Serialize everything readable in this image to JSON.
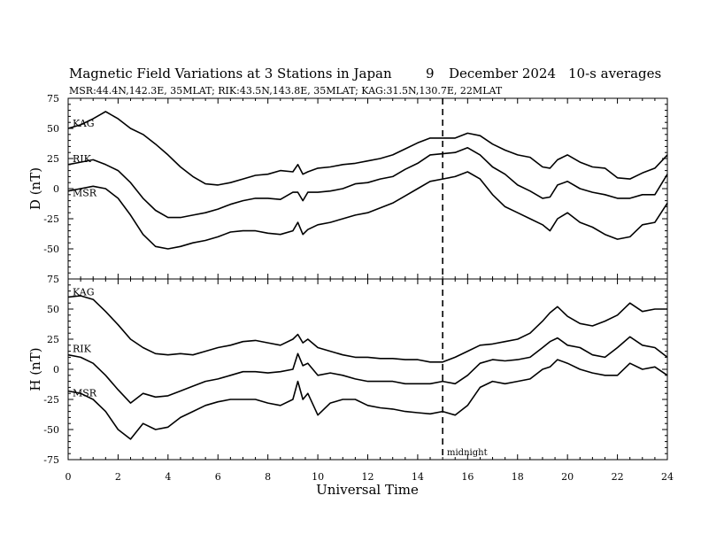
{
  "header": {
    "title": "Magnetic Field Variations at 3 Stations in Japan",
    "day": "9",
    "month_year": "December 2024",
    "averaging": "10-s averages",
    "stations_line": "MSR:44.4N,142.3E, 35MLAT;  RIK:43.5N,143.8E, 35MLAT;  KAG:31.5N,130.7E, 22MLAT"
  },
  "annotations": {
    "midnight": "midnight"
  },
  "chart_data": [
    {
      "type": "line",
      "panel": "D",
      "ylabel": "D (nT)",
      "xlabel": "Universal Time",
      "xlim": [
        0,
        24
      ],
      "ylim": [
        -75,
        75
      ],
      "xticks": [
        "0",
        "2",
        "4",
        "6",
        "8",
        "10",
        "12",
        "14",
        "16",
        "18",
        "20",
        "22",
        "24"
      ],
      "yticks": [
        "-75",
        "-50",
        "-25",
        "0",
        "25",
        "50",
        "75"
      ],
      "vline": {
        "x": 15,
        "style": "dashed",
        "label": "midnight"
      },
      "series": [
        {
          "name": "KAG",
          "x": [
            0,
            0.5,
            1.0,
            1.5,
            2.0,
            2.5,
            3.0,
            3.5,
            4.0,
            4.5,
            5.0,
            5.5,
            6.0,
            6.5,
            7.0,
            7.5,
            8.0,
            8.5,
            9.0,
            9.2,
            9.4,
            9.6,
            10.0,
            10.5,
            11.0,
            11.5,
            12.0,
            12.5,
            13.0,
            13.5,
            14.0,
            14.5,
            15.0,
            15.5,
            16.0,
            16.5,
            17.0,
            17.5,
            18.0,
            18.5,
            19.0,
            19.3,
            19.6,
            20.0,
            20.5,
            21.0,
            21.5,
            22.0,
            22.5,
            23.0,
            23.5,
            24.0
          ],
          "values": [
            50,
            53,
            58,
            64,
            58,
            50,
            45,
            37,
            28,
            18,
            10,
            4,
            3,
            5,
            8,
            11,
            12,
            15,
            14,
            20,
            12,
            14,
            17,
            18,
            20,
            21,
            23,
            25,
            28,
            33,
            38,
            42,
            42,
            42,
            46,
            44,
            37,
            32,
            28,
            26,
            18,
            17,
            24,
            28,
            22,
            18,
            17,
            9,
            8,
            13,
            17,
            28
          ]
        },
        {
          "name": "RIK",
          "x": [
            0,
            0.5,
            1.0,
            1.5,
            2.0,
            2.5,
            3.0,
            3.5,
            4.0,
            4.5,
            5.0,
            5.5,
            6.0,
            6.5,
            7.0,
            7.5,
            8.0,
            8.5,
            9.0,
            9.2,
            9.4,
            9.6,
            10.0,
            10.5,
            11.0,
            11.5,
            12.0,
            12.5,
            13.0,
            13.5,
            14.0,
            14.5,
            15.0,
            15.5,
            16.0,
            16.5,
            17.0,
            17.5,
            18.0,
            18.5,
            19.0,
            19.3,
            19.6,
            20.0,
            20.5,
            21.0,
            21.5,
            22.0,
            22.5,
            23.0,
            23.5,
            24.0
          ],
          "values": [
            20,
            22,
            24,
            20,
            15,
            5,
            -8,
            -18,
            -24,
            -24,
            -22,
            -20,
            -17,
            -13,
            -10,
            -8,
            -8,
            -9,
            -3,
            -3,
            -10,
            -3,
            -3,
            -2,
            0,
            4,
            5,
            8,
            10,
            16,
            21,
            28,
            29,
            30,
            34,
            28,
            18,
            12,
            3,
            -2,
            -8,
            -7,
            3,
            6,
            0,
            -3,
            -5,
            -8,
            -8,
            -5,
            -5,
            12
          ]
        },
        {
          "name": "MSR",
          "x": [
            0,
            0.5,
            1.0,
            1.5,
            2.0,
            2.5,
            3.0,
            3.5,
            4.0,
            4.5,
            5.0,
            5.5,
            6.0,
            6.5,
            7.0,
            7.5,
            8.0,
            8.5,
            9.0,
            9.2,
            9.4,
            9.6,
            10.0,
            10.5,
            11.0,
            11.5,
            12.0,
            12.5,
            13.0,
            13.5,
            14.0,
            14.5,
            15.0,
            15.5,
            16.0,
            16.5,
            17.0,
            17.5,
            18.0,
            18.5,
            19.0,
            19.3,
            19.6,
            20.0,
            20.5,
            21.0,
            21.5,
            22.0,
            22.5,
            23.0,
            23.5,
            24.0
          ],
          "values": [
            -2,
            0,
            2,
            0,
            -8,
            -22,
            -38,
            -48,
            -50,
            -48,
            -45,
            -43,
            -40,
            -36,
            -35,
            -35,
            -37,
            -38,
            -35,
            -28,
            -38,
            -34,
            -30,
            -28,
            -25,
            -22,
            -20,
            -16,
            -12,
            -6,
            0,
            6,
            8,
            10,
            14,
            8,
            -5,
            -15,
            -20,
            -25,
            -30,
            -35,
            -25,
            -20,
            -28,
            -32,
            -38,
            -42,
            -40,
            -30,
            -28,
            -12
          ]
        }
      ]
    },
    {
      "type": "line",
      "panel": "H",
      "ylabel": "H (nT)",
      "xlabel": "Universal Time",
      "xlim": [
        0,
        24
      ],
      "ylim": [
        -75,
        75
      ],
      "xticks": [
        "0",
        "2",
        "4",
        "6",
        "8",
        "10",
        "12",
        "14",
        "16",
        "18",
        "20",
        "22",
        "24"
      ],
      "yticks": [
        "-75",
        "-50",
        "-25",
        "0",
        "25",
        "50",
        "75"
      ],
      "vline": {
        "x": 15,
        "style": "dashed",
        "label": "midnight"
      },
      "series": [
        {
          "name": "KAG",
          "x": [
            0,
            0.5,
            1.0,
            1.5,
            2.0,
            2.5,
            3.0,
            3.5,
            4.0,
            4.5,
            5.0,
            5.5,
            6.0,
            6.5,
            7.0,
            7.5,
            8.0,
            8.5,
            9.0,
            9.2,
            9.4,
            9.6,
            10.0,
            10.5,
            11.0,
            11.5,
            12.0,
            12.5,
            13.0,
            13.5,
            14.0,
            14.5,
            15.0,
            15.5,
            16.0,
            16.5,
            17.0,
            17.5,
            18.0,
            18.5,
            19.0,
            19.3,
            19.6,
            20.0,
            20.5,
            21.0,
            21.5,
            22.0,
            22.5,
            23.0,
            23.5,
            24.0
          ],
          "values": [
            60,
            61,
            58,
            48,
            37,
            25,
            18,
            13,
            12,
            13,
            12,
            15,
            18,
            20,
            23,
            24,
            22,
            20,
            25,
            29,
            22,
            25,
            18,
            15,
            12,
            10,
            10,
            9,
            9,
            8,
            8,
            6,
            6,
            10,
            15,
            20,
            21,
            23,
            25,
            30,
            40,
            47,
            52,
            44,
            38,
            36,
            40,
            45,
            55,
            48,
            50,
            50
          ]
        },
        {
          "name": "RIK",
          "x": [
            0,
            0.5,
            1.0,
            1.5,
            2.0,
            2.5,
            3.0,
            3.5,
            4.0,
            4.5,
            5.0,
            5.5,
            6.0,
            6.5,
            7.0,
            7.5,
            8.0,
            8.5,
            9.0,
            9.2,
            9.4,
            9.6,
            10.0,
            10.5,
            11.0,
            11.5,
            12.0,
            12.5,
            13.0,
            13.5,
            14.0,
            14.5,
            15.0,
            15.5,
            16.0,
            16.5,
            17.0,
            17.5,
            18.0,
            18.5,
            19.0,
            19.3,
            19.6,
            20.0,
            20.5,
            21.0,
            21.5,
            22.0,
            22.5,
            23.0,
            23.5,
            24.0
          ],
          "values": [
            12,
            10,
            5,
            -5,
            -17,
            -28,
            -20,
            -23,
            -22,
            -18,
            -14,
            -10,
            -8,
            -5,
            -2,
            -2,
            -3,
            -2,
            0,
            13,
            3,
            5,
            -5,
            -3,
            -5,
            -8,
            -10,
            -10,
            -10,
            -12,
            -12,
            -12,
            -10,
            -12,
            -5,
            5,
            8,
            7,
            8,
            10,
            18,
            23,
            26,
            20,
            18,
            12,
            10,
            18,
            27,
            20,
            18,
            10
          ]
        },
        {
          "name": "MSR",
          "x": [
            0,
            0.5,
            1.0,
            1.5,
            2.0,
            2.5,
            3.0,
            3.5,
            4.0,
            4.5,
            5.0,
            5.5,
            6.0,
            6.5,
            7.0,
            7.5,
            8.0,
            8.5,
            9.0,
            9.2,
            9.4,
            9.6,
            10.0,
            10.5,
            11.0,
            11.5,
            12.0,
            12.5,
            13.0,
            13.5,
            14.0,
            14.5,
            15.0,
            15.5,
            16.0,
            16.5,
            17.0,
            17.5,
            18.0,
            18.5,
            19.0,
            19.3,
            19.6,
            20.0,
            20.5,
            21.0,
            21.5,
            22.0,
            22.5,
            23.0,
            23.5,
            24.0
          ],
          "values": [
            -18,
            -20,
            -25,
            -35,
            -50,
            -58,
            -45,
            -50,
            -48,
            -40,
            -35,
            -30,
            -27,
            -25,
            -25,
            -25,
            -28,
            -30,
            -25,
            -10,
            -25,
            -20,
            -38,
            -28,
            -25,
            -25,
            -30,
            -32,
            -33,
            -35,
            -36,
            -37,
            -35,
            -38,
            -30,
            -15,
            -10,
            -12,
            -10,
            -8,
            0,
            2,
            8,
            5,
            0,
            -3,
            -5,
            -5,
            5,
            0,
            2,
            -5
          ]
        }
      ]
    }
  ]
}
